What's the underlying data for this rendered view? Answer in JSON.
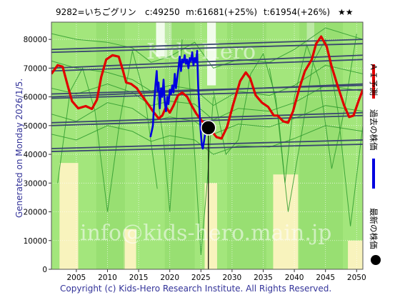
{
  "header": {
    "code_name": "9282=いちごグリン",
    "current": "c:49250",
    "mid_target": "m:61681(+25%)",
    "target": "t:61954(+26%)",
    "rating": "★★"
  },
  "side_text": "Generated on Monday 2026/1/5.",
  "footer_text": "Copyright (c) Kids-Hero Research Institute. All Rights Reserved.",
  "watermarks": {
    "top": "Kids-Hero",
    "bottom": "info@kids-hero.main.jp"
  },
  "legend": [
    {
      "label": "ＡＩ予測",
      "color": "#e00000"
    },
    {
      "label": "過去の株価",
      "color": "#0000e0"
    },
    {
      "label": "最新の株価",
      "color": "#000000"
    }
  ],
  "chart_data": {
    "type": "line",
    "xlim": [
      2001,
      2051
    ],
    "ylim": [
      0,
      86000
    ],
    "x_ticks": [
      "2005",
      "2010",
      "2015",
      "2020",
      "2025",
      "2030",
      "2035",
      "2040",
      "2045",
      "2050"
    ],
    "y_ticks": [
      "0",
      "10000",
      "20000",
      "30000",
      "40000",
      "50000",
      "60000",
      "70000",
      "80000"
    ],
    "grid": true,
    "colors": {
      "plot_bg": "#a3e67c",
      "band_light": "#c8f0a6",
      "band_yellow": "#f8f3bd",
      "band_white": "#ffffff",
      "green_line": "#2e9a2e",
      "trend_line": "#3a4770",
      "ai_line": "#e00000",
      "past_line": "#0000e0",
      "latest_marker": "#000000"
    },
    "latest_point": {
      "x": 2026.2,
      "y": 49250
    },
    "ai_forecast": [
      [
        2001,
        68000
      ],
      [
        2002,
        71000
      ],
      [
        2002.8,
        70500
      ],
      [
        2003.6,
        64000
      ],
      [
        2004.3,
        58500
      ],
      [
        2005.3,
        56000
      ],
      [
        2006.5,
        56800
      ],
      [
        2007.5,
        55800
      ],
      [
        2008.3,
        59000
      ],
      [
        2009,
        67000
      ],
      [
        2009.8,
        73000
      ],
      [
        2010.8,
        74500
      ],
      [
        2011.8,
        74000
      ],
      [
        2012.5,
        69000
      ],
      [
        2013,
        65000
      ],
      [
        2013.8,
        64500
      ],
      [
        2014.7,
        63000
      ],
      [
        2015.5,
        60500
      ],
      [
        2016.5,
        57500
      ],
      [
        2017.3,
        55000
      ],
      [
        2018.2,
        52500
      ],
      [
        2018.8,
        53500
      ],
      [
        2019.4,
        56500
      ],
      [
        2020,
        54500
      ],
      [
        2020.6,
        57000
      ],
      [
        2021.3,
        60500
      ],
      [
        2022,
        61500
      ],
      [
        2022.8,
        60000
      ],
      [
        2023.5,
        57000
      ],
      [
        2024.3,
        54000
      ],
      [
        2025.2,
        51500
      ],
      [
        2026.2,
        49500
      ],
      [
        2027.5,
        46000
      ],
      [
        2028.3,
        45500
      ],
      [
        2029.2,
        49500
      ],
      [
        2030.2,
        57500
      ],
      [
        2031.3,
        65500
      ],
      [
        2032.2,
        68500
      ],
      [
        2032.9,
        66500
      ],
      [
        2033.8,
        60500
      ],
      [
        2034.8,
        58000
      ],
      [
        2035.8,
        56500
      ],
      [
        2036.7,
        53500
      ],
      [
        2037.3,
        53500
      ],
      [
        2038.2,
        51500
      ],
      [
        2039,
        51000
      ],
      [
        2039.8,
        55000
      ],
      [
        2040.8,
        63000
      ],
      [
        2041.7,
        69000
      ],
      [
        2042.8,
        73000
      ],
      [
        2043.5,
        78500
      ],
      [
        2044.3,
        81000
      ],
      [
        2045.2,
        77500
      ],
      [
        2046,
        70500
      ],
      [
        2047,
        63500
      ],
      [
        2048,
        57000
      ],
      [
        2048.8,
        53000
      ],
      [
        2049.5,
        53500
      ],
      [
        2050.3,
        58500
      ],
      [
        2051,
        62500
      ]
    ],
    "past_prices": [
      [
        2016.9,
        46000
      ],
      [
        2017.1,
        48000
      ],
      [
        2017.3,
        50000
      ],
      [
        2017.5,
        58000
      ],
      [
        2017.7,
        64000
      ],
      [
        2017.9,
        69000
      ],
      [
        2018.05,
        62000
      ],
      [
        2018.2,
        65000
      ],
      [
        2018.4,
        56000
      ],
      [
        2018.6,
        63000
      ],
      [
        2018.8,
        60000
      ],
      [
        2019,
        66000
      ],
      [
        2019.2,
        58000
      ],
      [
        2019.4,
        55000
      ],
      [
        2019.6,
        60000
      ],
      [
        2019.8,
        57500
      ],
      [
        2020,
        62500
      ],
      [
        2020.2,
        61000
      ],
      [
        2020.4,
        64000
      ],
      [
        2020.6,
        61500
      ],
      [
        2020.8,
        68000
      ],
      [
        2021,
        63000
      ],
      [
        2021.2,
        66500
      ],
      [
        2021.4,
        70000
      ],
      [
        2021.6,
        74000
      ],
      [
        2021.8,
        69000
      ],
      [
        2022,
        73000
      ],
      [
        2022.2,
        72000
      ],
      [
        2022.4,
        74500
      ],
      [
        2022.6,
        71500
      ],
      [
        2022.8,
        73000
      ],
      [
        2023,
        70000
      ],
      [
        2023.2,
        73500
      ],
      [
        2023.4,
        72500
      ],
      [
        2023.6,
        75500
      ],
      [
        2023.8,
        71000
      ],
      [
        2024,
        73500
      ],
      [
        2024.2,
        72000
      ],
      [
        2024.4,
        76000
      ],
      [
        2024.55,
        64000
      ],
      [
        2024.7,
        58000
      ],
      [
        2024.85,
        52000
      ],
      [
        2025,
        47000
      ],
      [
        2025.15,
        43000
      ],
      [
        2025.3,
        42000
      ],
      [
        2025.5,
        44500
      ],
      [
        2025.7,
        47500
      ],
      [
        2025.9,
        49000
      ],
      [
        2026.2,
        49250
      ]
    ],
    "trend_lines": [
      [
        [
          2001,
          76500
        ],
        [
          2051,
          80000
        ]
      ],
      [
        [
          2001,
          75500
        ],
        [
          2051,
          78500
        ]
      ],
      [
        [
          2001,
          70000
        ],
        [
          2051,
          74500
        ]
      ],
      [
        [
          2001,
          69000
        ],
        [
          2051,
          73000
        ]
      ],
      [
        [
          2001,
          61000
        ],
        [
          2051,
          64000
        ]
      ],
      [
        [
          2001,
          60000
        ],
        [
          2051,
          64500
        ]
      ],
      [
        [
          2001,
          59500
        ],
        [
          2051,
          62500
        ]
      ],
      [
        [
          2001,
          51000
        ],
        [
          2051,
          54500
        ]
      ],
      [
        [
          2001,
          50000
        ],
        [
          2051,
          53500
        ]
      ],
      [
        [
          2001,
          42000
        ],
        [
          2051,
          45000
        ]
      ],
      [
        [
          2001,
          41000
        ],
        [
          2051,
          43500
        ]
      ]
    ],
    "green_envelope_lines": [
      [
        [
          2001,
          72500
        ],
        [
          2005,
          70000
        ],
        [
          2010,
          68500
        ],
        [
          2014,
          66000
        ],
        [
          2017,
          62000
        ],
        [
          2020,
          64000
        ],
        [
          2024,
          62500
        ],
        [
          2027,
          57000
        ],
        [
          2031,
          62000
        ],
        [
          2036,
          60500
        ],
        [
          2040,
          64000
        ],
        [
          2045,
          71000
        ],
        [
          2051,
          68000
        ]
      ],
      [
        [
          2001,
          63000
        ],
        [
          2005,
          61000
        ],
        [
          2010,
          64500
        ],
        [
          2014,
          61500
        ],
        [
          2017,
          57000
        ],
        [
          2020,
          58500
        ],
        [
          2024,
          57500
        ],
        [
          2027,
          52000
        ],
        [
          2031,
          56000
        ],
        [
          2036,
          55000
        ],
        [
          2040,
          58000
        ],
        [
          2045,
          64000
        ],
        [
          2051,
          62000
        ]
      ],
      [
        [
          2001,
          54000
        ],
        [
          2005,
          51500
        ],
        [
          2010,
          58000
        ],
        [
          2014,
          56000
        ],
        [
          2017,
          51500
        ],
        [
          2020,
          53000
        ],
        [
          2024,
          51500
        ],
        [
          2027,
          47000
        ],
        [
          2031,
          50500
        ],
        [
          2036,
          49500
        ],
        [
          2040,
          52500
        ],
        [
          2045,
          57000
        ],
        [
          2051,
          55000
        ]
      ],
      [
        [
          2001,
          82000
        ],
        [
          2005,
          80000
        ],
        [
          2010,
          79000
        ],
        [
          2014,
          77000
        ],
        [
          2017,
          72000
        ],
        [
          2020,
          74000
        ],
        [
          2024,
          79000
        ],
        [
          2027,
          70000
        ],
        [
          2031,
          73000
        ],
        [
          2036,
          72000
        ],
        [
          2040,
          76500
        ],
        [
          2045,
          84000
        ],
        [
          2051,
          80000
        ]
      ],
      [
        [
          2001,
          47000
        ],
        [
          2005,
          45000
        ],
        [
          2010,
          50000
        ],
        [
          2014,
          48000
        ],
        [
          2017,
          44500
        ],
        [
          2020,
          46500
        ],
        [
          2024,
          45000
        ],
        [
          2027,
          40000
        ],
        [
          2031,
          43000
        ],
        [
          2036,
          42500
        ],
        [
          2040,
          45500
        ],
        [
          2045,
          50000
        ],
        [
          2051,
          48000
        ]
      ],
      [
        [
          2002,
          30000
        ],
        [
          2004,
          62000
        ],
        [
          2006,
          70000
        ],
        [
          2008,
          55000
        ],
        [
          2010,
          20000
        ],
        [
          2012,
          52000
        ],
        [
          2014,
          76000
        ],
        [
          2016,
          60000
        ],
        [
          2018,
          28000
        ]
      ],
      [
        [
          2018,
          60000
        ],
        [
          2019,
          45000
        ],
        [
          2020,
          20000
        ],
        [
          2021,
          50000
        ],
        [
          2022,
          80000
        ]
      ],
      [
        [
          2023,
          70000
        ],
        [
          2024,
          40000
        ],
        [
          2025,
          5000
        ],
        [
          2026,
          30000
        ],
        [
          2027,
          60000
        ]
      ],
      [
        [
          2027,
          62000
        ],
        [
          2029,
          40000
        ],
        [
          2031,
          45000
        ],
        [
          2033,
          68000
        ],
        [
          2035,
          75000
        ],
        [
          2037,
          60000
        ],
        [
          2039,
          20000
        ],
        [
          2041,
          45000
        ],
        [
          2043,
          72000
        ],
        [
          2045,
          80000
        ],
        [
          2047,
          55000
        ],
        [
          2049,
          15000
        ],
        [
          2051,
          50000
        ]
      ],
      [
        [
          2036,
          70000
        ],
        [
          2037.5,
          52000
        ],
        [
          2038.5,
          30000
        ],
        [
          2040,
          60000
        ],
        [
          2042,
          78000
        ],
        [
          2044,
          66000
        ],
        [
          2046,
          35000
        ],
        [
          2048,
          55000
        ],
        [
          2050,
          82000
        ]
      ]
    ],
    "bands": [
      {
        "kind": "light",
        "x0": 2001,
        "x1": 2051,
        "y0": 0,
        "y1": 86000
      },
      {
        "kind": "yellow",
        "x0": 2002.3,
        "x1": 2005.3,
        "y0": 0,
        "y1": 37000
      },
      {
        "kind": "yellow",
        "x0": 2012.6,
        "x1": 2014.6,
        "y0": 0,
        "y1": 14000
      },
      {
        "kind": "yellow",
        "x0": 2025.6,
        "x1": 2027.6,
        "y0": 0,
        "y1": 30000
      },
      {
        "kind": "yellow",
        "x0": 2036.6,
        "x1": 2040.6,
        "y0": 0,
        "y1": 33000
      },
      {
        "kind": "yellow",
        "x0": 2048.6,
        "x1": 2051,
        "y0": 0,
        "y1": 10000
      },
      {
        "kind": "white",
        "x0": 2017.8,
        "x1": 2020.3,
        "y0": 74000,
        "y1": 86000
      },
      {
        "kind": "white",
        "x0": 2026.0,
        "x1": 2027.4,
        "y0": 64000,
        "y1": 86000
      },
      {
        "kind": "white",
        "x0": 2042.0,
        "x1": 2043.2,
        "y0": 78000,
        "y1": 86000
      }
    ],
    "mid_green": [
      {
        "x0": 2008.2,
        "x1": 2012.8,
        "y0": 0,
        "y1": 86000
      },
      {
        "x0": 2019.2,
        "x1": 2024.0,
        "y0": 0,
        "y1": 86000
      },
      {
        "x0": 2029.2,
        "x1": 2035.5,
        "y0": 0,
        "y1": 86000
      },
      {
        "x0": 2040.8,
        "x1": 2047.8,
        "y0": 0,
        "y1": 86000
      }
    ]
  }
}
